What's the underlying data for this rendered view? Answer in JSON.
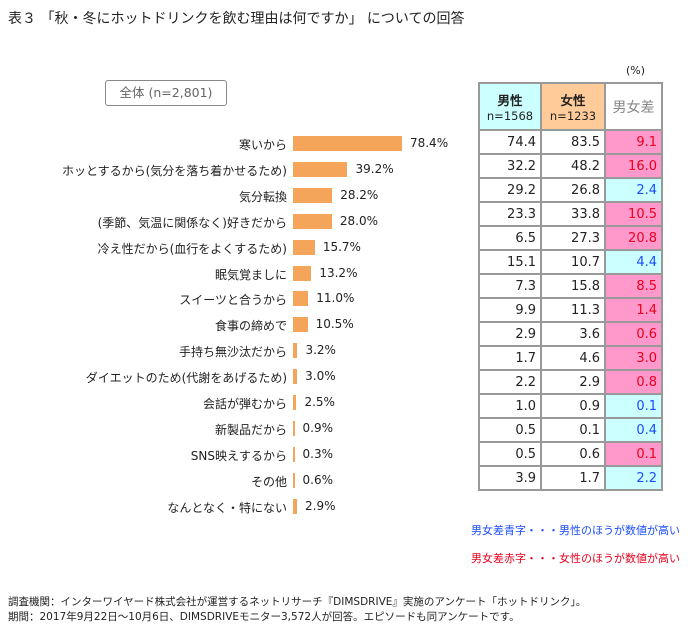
{
  "title": "表３ 「秋・冬にホットドリンクを飲む理由は何ですか」 についての回答",
  "unit": "(%)",
  "colors": {
    "bar": "#f5a55a",
    "male": "#ccffff",
    "female": "#ffcc99",
    "red_bg": "#ff99cc",
    "blue_bg": "#ccffff",
    "red_text": "#e8001c",
    "blue_text": "#1a4dff"
  },
  "chart_data": {
    "type": "bar",
    "orientation": "horizontal",
    "legend_box": "全体 (n=2,801)",
    "categories": [
      "寒いから",
      "ホッとするから(気分を落ち着かせるため)",
      "気分転換",
      "(季節、気温に関係なく)好きだから",
      "冷え性だから(血行をよくするため)",
      "眠気覚ましに",
      "スイーツと合うから",
      "食事の締めで",
      "手持ち無沙汰だから",
      "ダイエットのため(代謝をあげるため)",
      "会話が弾むから",
      "新製品だから",
      "SNS映えするから",
      "その他",
      "なんとなく・特にない"
    ],
    "values": [
      78.4,
      39.2,
      28.2,
      28.0,
      15.7,
      13.2,
      11.0,
      10.5,
      3.2,
      3.0,
      2.5,
      0.9,
      0.3,
      0.6,
      2.9
    ],
    "labels": [
      "78.4%",
      "39.2%",
      "28.2%",
      "28.0%",
      "15.7%",
      "13.2%",
      "11.0%",
      "10.5%",
      "3.2%",
      "3.0%",
      "2.5%",
      "0.9%",
      "0.3%",
      "0.6%",
      "2.9%"
    ]
  },
  "table": {
    "headers": {
      "male": "男性",
      "male_n": "n=1568",
      "female": "女性",
      "female_n": "n=1233",
      "diff": "男女差"
    },
    "male": [
      "74.4",
      "32.2",
      "29.2",
      "23.3",
      "6.5",
      "15.1",
      "7.3",
      "9.9",
      "2.9",
      "1.7",
      "2.2",
      "1.0",
      "0.5",
      "0.5",
      "3.9"
    ],
    "female": [
      "83.5",
      "48.2",
      "26.8",
      "33.8",
      "27.3",
      "10.7",
      "15.8",
      "11.3",
      "3.6",
      "4.6",
      "2.9",
      "0.9",
      "0.1",
      "0.6",
      "1.7"
    ],
    "diff": [
      "9.1",
      "16.0",
      "2.4",
      "10.5",
      "20.8",
      "4.4",
      "8.5",
      "1.4",
      "0.6",
      "3.0",
      "0.8",
      "0.1",
      "0.4",
      "0.1",
      "2.2"
    ],
    "diff_sign": [
      "red",
      "red",
      "blue",
      "red",
      "red",
      "blue",
      "red",
      "red",
      "red",
      "red",
      "red",
      "blue",
      "blue",
      "red",
      "blue"
    ]
  },
  "notes": {
    "blue": "男女差青字・・・男性のほうが数値が高い",
    "red": "男女差赤字・・・女性のほうが数値が高い"
  },
  "footer": [
    "調査機関：インターワイヤード株式会社が運営するネットリサーチ『DIMSDRIVE』実施のアンケート「ホットドリンク」。",
    "期間：2017年9月22日～10月6日、DIMSDRIVEモニター3,572人が回答。エピソードも同アンケートです。"
  ]
}
